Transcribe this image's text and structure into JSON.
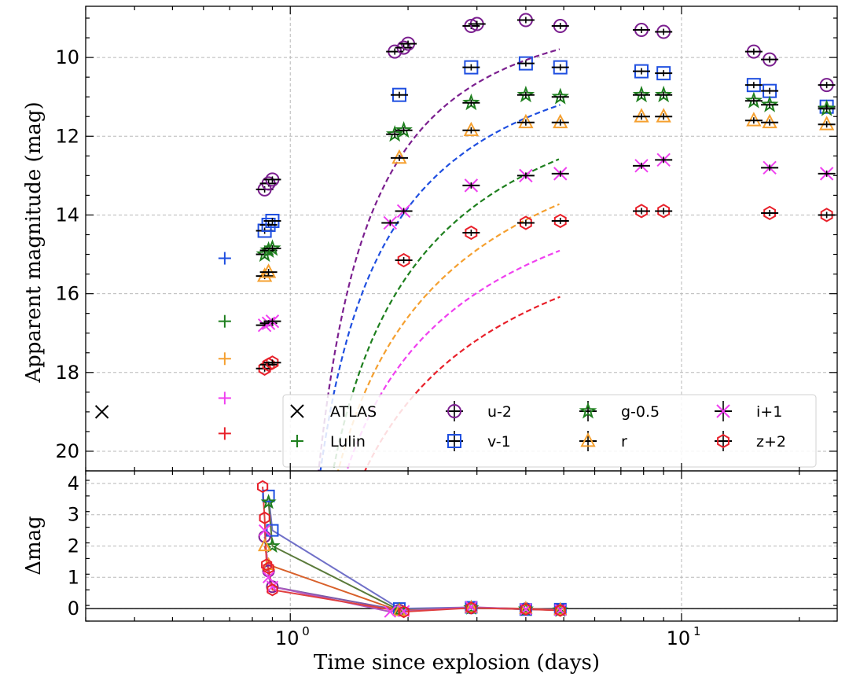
{
  "colors": {
    "u": "#7b1f8f",
    "v": "#1f4fe0",
    "g": "#1e7f1e",
    "r": "#f5a030",
    "i": "#f040f0",
    "z": "#e8202a",
    "atlas": "#000000",
    "lulin": "#1e7f1e"
  },
  "chart_data": [
    {
      "type": "scatter",
      "panel": "top",
      "xlabel": "Time since explosion (days)",
      "ylabel": "Apparent magnitude (mag)",
      "xscale": "log",
      "xlim": [
        0.3,
        25
      ],
      "ylim": [
        20.5,
        8.7
      ],
      "y_inverted": true,
      "grid": true,
      "x_ticks": [
        {
          "value": 1,
          "label": "10^0"
        },
        {
          "value": 10,
          "label": "10^1"
        }
      ],
      "y_ticks": [
        10,
        12,
        14,
        16,
        18,
        20
      ],
      "legend_placement": "lower-right",
      "legend": [
        {
          "label": "ATLAS",
          "marker": "x",
          "color_key": "atlas"
        },
        {
          "label": "Lulin",
          "marker": "plus",
          "color_key": "lulin"
        },
        {
          "label": "u-2",
          "marker": "circle",
          "color_key": "u"
        },
        {
          "label": "v-1",
          "marker": "square",
          "color_key": "v"
        },
        {
          "label": "g-0.5",
          "marker": "star",
          "color_key": "g"
        },
        {
          "label": "r",
          "marker": "triangle",
          "color_key": "r"
        },
        {
          "label": "i+1",
          "marker": "x",
          "color_key": "i"
        },
        {
          "label": "z+2",
          "marker": "hexagon",
          "color_key": "z"
        }
      ],
      "series": [
        {
          "name": "u-2",
          "marker": "circle",
          "color_key": "u",
          "x": [
            0.86,
            0.88,
            0.9,
            1.85,
            1.95,
            2.0,
            2.9,
            3.0,
            4.0,
            4.9,
            7.9,
            9.0,
            15.3,
            16.8,
            23.5
          ],
          "y": [
            13.35,
            13.2,
            13.1,
            9.85,
            9.75,
            9.65,
            9.2,
            9.15,
            9.05,
            9.2,
            9.3,
            9.35,
            9.85,
            10.05,
            10.7
          ],
          "err": [
            0.06,
            0.06,
            0.06,
            0.03,
            0.03,
            0.03,
            0.03,
            0.03,
            0.03,
            0.03,
            0.05,
            0.05,
            0.05,
            0.05,
            0.05
          ]
        },
        {
          "name": "v-1",
          "marker": "square",
          "color_key": "v",
          "x": [
            0.86,
            0.88,
            0.9,
            1.9,
            2.9,
            4.0,
            4.9,
            7.9,
            9.0,
            15.3,
            16.8,
            23.5
          ],
          "y": [
            14.4,
            14.25,
            14.15,
            10.95,
            10.25,
            10.15,
            10.25,
            10.35,
            10.4,
            10.7,
            10.85,
            11.25
          ],
          "err": [
            0.08,
            0.08,
            0.08,
            0.04,
            0.04,
            0.04,
            0.04,
            0.05,
            0.05,
            0.05,
            0.05,
            0.05
          ]
        },
        {
          "name": "g-0.5",
          "marker": "star",
          "color_key": "g",
          "x": [
            0.86,
            0.88,
            0.9,
            1.85,
            1.95,
            2.9,
            4.0,
            4.9,
            7.9,
            9.0,
            15.3,
            16.8,
            23.5
          ],
          "y": [
            15.0,
            14.9,
            14.85,
            11.95,
            11.85,
            11.15,
            10.95,
            11.0,
            10.95,
            10.95,
            11.1,
            11.2,
            11.3
          ],
          "err": [
            0.06,
            0.06,
            0.06,
            0.04,
            0.04,
            0.03,
            0.03,
            0.03,
            0.03,
            0.03,
            0.03,
            0.03,
            0.03
          ]
        },
        {
          "name": "r",
          "marker": "triangle",
          "color_key": "r",
          "x": [
            0.86,
            0.88,
            1.9,
            2.9,
            4.0,
            4.9,
            7.9,
            9.0,
            15.3,
            16.8,
            23.5
          ],
          "y": [
            15.55,
            15.45,
            12.55,
            11.85,
            11.65,
            11.65,
            11.5,
            11.5,
            11.6,
            11.65,
            11.7
          ],
          "err": [
            0.05,
            0.05,
            0.04,
            0.03,
            0.03,
            0.03,
            0.03,
            0.03,
            0.03,
            0.03,
            0.03
          ]
        },
        {
          "name": "i+1",
          "marker": "x",
          "color_key": "i",
          "x": [
            0.86,
            0.88,
            0.9,
            1.8,
            1.95,
            2.9,
            4.0,
            4.9,
            7.9,
            9.0,
            16.8,
            23.5
          ],
          "y": [
            16.8,
            16.75,
            16.7,
            14.2,
            13.9,
            13.25,
            13.0,
            12.95,
            12.75,
            12.6,
            12.8,
            12.95
          ],
          "err": [
            0.05,
            0.05,
            0.05,
            0.04,
            0.04,
            0.03,
            0.03,
            0.03,
            0.03,
            0.03,
            0.03,
            0.03
          ]
        },
        {
          "name": "z+2",
          "marker": "hexagon",
          "color_key": "z",
          "x": [
            0.86,
            0.88,
            0.9,
            1.95,
            2.9,
            4.0,
            4.9,
            7.9,
            9.0,
            16.8,
            23.5
          ],
          "y": [
            17.9,
            17.8,
            17.75,
            15.15,
            14.45,
            14.2,
            14.15,
            13.9,
            13.9,
            13.95,
            14.0
          ],
          "err": [
            0.05,
            0.05,
            0.05,
            0.04,
            0.03,
            0.03,
            0.03,
            0.03,
            0.03,
            0.03,
            0.03
          ]
        },
        {
          "name": "ATLAS",
          "marker": "x",
          "color_key": "atlas",
          "x": [
            0.33
          ],
          "y": [
            19.0
          ]
        },
        {
          "name": "Lulin",
          "marker": "plus",
          "multicolor": true,
          "x": [
            0.68,
            0.68,
            0.68,
            0.68,
            0.68
          ],
          "y": [
            15.1,
            16.7,
            17.65,
            18.65,
            19.55
          ],
          "color_keys": [
            "v",
            "g",
            "r",
            "i",
            "z"
          ]
        }
      ],
      "fits": [
        {
          "color_key": "u",
          "t0": 0.84,
          "m_inf": 8.8,
          "a": 4.0,
          "p": 1.0
        },
        {
          "color_key": "v",
          "t0": 0.85,
          "m_inf": 9.7,
          "a": 4.6,
          "p": 0.8
        },
        {
          "color_key": "g",
          "t0": 0.86,
          "m_inf": 10.5,
          "a": 5.5,
          "p": 0.7
        },
        {
          "color_key": "r",
          "t0": 0.87,
          "m_inf": 11.2,
          "a": 5.8,
          "p": 0.6
        },
        {
          "color_key": "i",
          "t0": 0.88,
          "m_inf": 12.6,
          "a": 5.3,
          "p": 0.6
        },
        {
          "color_key": "z",
          "t0": 0.85,
          "m_inf": 13.7,
          "a": 5.5,
          "p": 0.6
        }
      ]
    },
    {
      "type": "line",
      "panel": "bottom",
      "xlabel": "Time since explosion (days)",
      "ylabel": "Δmag",
      "xscale": "log",
      "xlim": [
        0.3,
        25
      ],
      "ylim": [
        -0.4,
        4.4
      ],
      "y_ticks": [
        0,
        1,
        2,
        3,
        4
      ],
      "grid": true,
      "series": [
        {
          "name": "u-2",
          "marker": "circle",
          "color_key": "u",
          "line_color": "#7b5aa6",
          "x": [
            0.86,
            0.88,
            0.9,
            1.9,
            2.9,
            4.0,
            4.9
          ],
          "y": [
            2.3,
            1.2,
            0.7,
            -0.05,
            0.02,
            0.0,
            -0.03
          ]
        },
        {
          "name": "v-1",
          "marker": "square",
          "color_key": "v",
          "line_color": "#7070c8",
          "x": [
            0.88,
            0.9,
            1.9,
            2.9,
            4.0,
            4.9
          ],
          "y": [
            3.6,
            2.5,
            0.0,
            0.04,
            -0.03,
            -0.02
          ]
        },
        {
          "name": "g-0.5",
          "marker": "star",
          "color_key": "g",
          "line_color": "#5a7a3a",
          "x": [
            0.88,
            0.9,
            1.9,
            2.9,
            4.0,
            4.9
          ],
          "y": [
            3.4,
            2.0,
            -0.05,
            0.02,
            -0.02,
            -0.05
          ]
        },
        {
          "name": "r",
          "marker": "triangle",
          "color_key": "r",
          "line_color": "#d8602a",
          "x": [
            0.86,
            0.88,
            1.9,
            2.9,
            4.0,
            4.9
          ],
          "y": [
            2.0,
            1.4,
            -0.07,
            0.03,
            0.0,
            -0.04
          ]
        },
        {
          "name": "i+1",
          "marker": "x",
          "color_key": "i",
          "line_color": "#b05ac0",
          "x": [
            0.86,
            0.88,
            0.9,
            1.8,
            1.95,
            2.9,
            4.0,
            4.9
          ],
          "y": [
            2.5,
            1.0,
            0.7,
            -0.1,
            -0.08,
            0.05,
            -0.02,
            -0.05
          ]
        },
        {
          "name": "z+2",
          "marker": "hexagon",
          "color_key": "z",
          "line_color": "#e04040",
          "x": [
            0.85,
            0.86,
            0.87,
            0.88,
            0.9,
            1.95,
            2.9,
            4.0,
            4.9
          ],
          "y": [
            3.9,
            2.9,
            1.4,
            1.3,
            0.6,
            -0.1,
            0.02,
            -0.02,
            -0.06
          ]
        }
      ]
    }
  ]
}
